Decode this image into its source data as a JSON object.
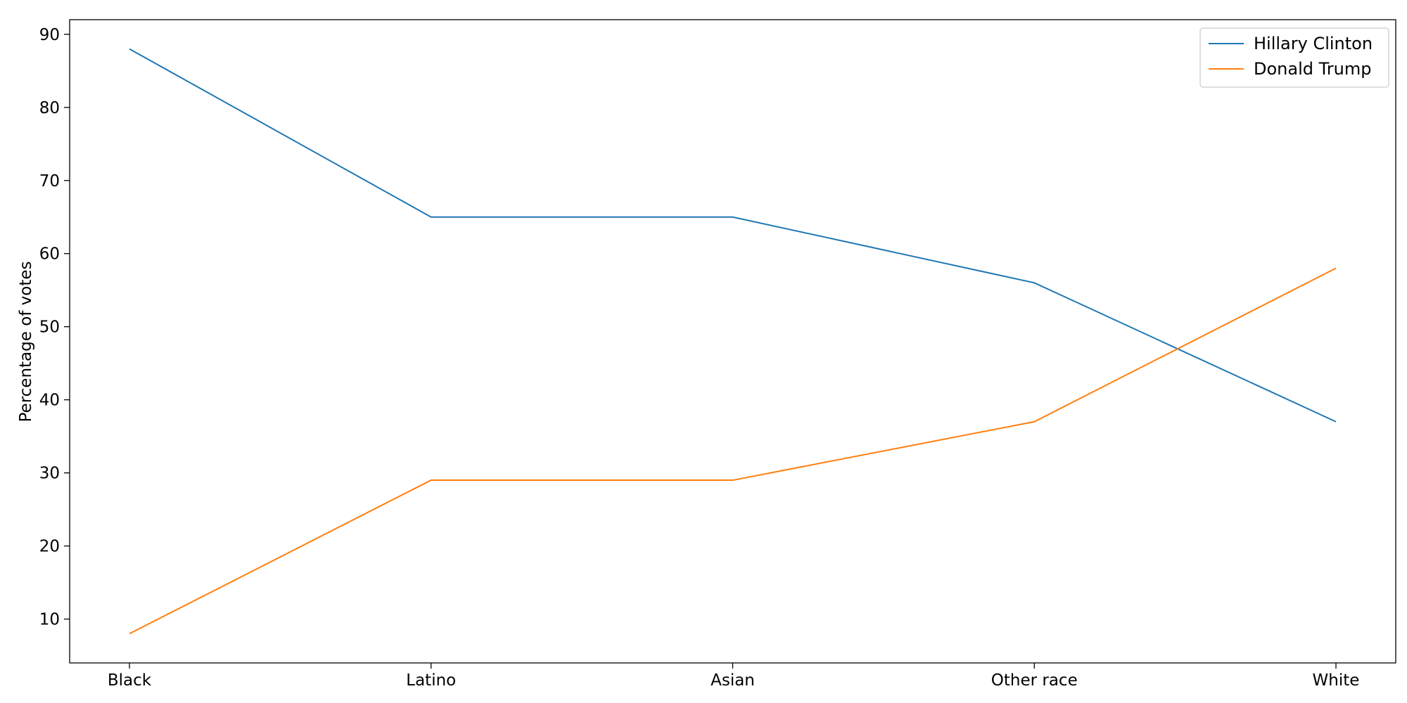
{
  "chart_data": {
    "type": "line",
    "title": "",
    "xlabel": "",
    "ylabel": "Percentage of votes",
    "categories": [
      "Black",
      "Latino",
      "Asian",
      "Other race",
      "White"
    ],
    "series": [
      {
        "name": "Hillary Clinton",
        "values": [
          88,
          65,
          65,
          56,
          37
        ],
        "color": "#1f77b4"
      },
      {
        "name": "Donald Trump",
        "values": [
          8,
          29,
          29,
          37,
          58
        ],
        "color": "#ff7f0e"
      }
    ],
    "ylim": [
      4,
      92
    ],
    "yticks": [
      10,
      20,
      30,
      40,
      50,
      60,
      70,
      80,
      90
    ],
    "grid": false,
    "legend": "top-right"
  }
}
